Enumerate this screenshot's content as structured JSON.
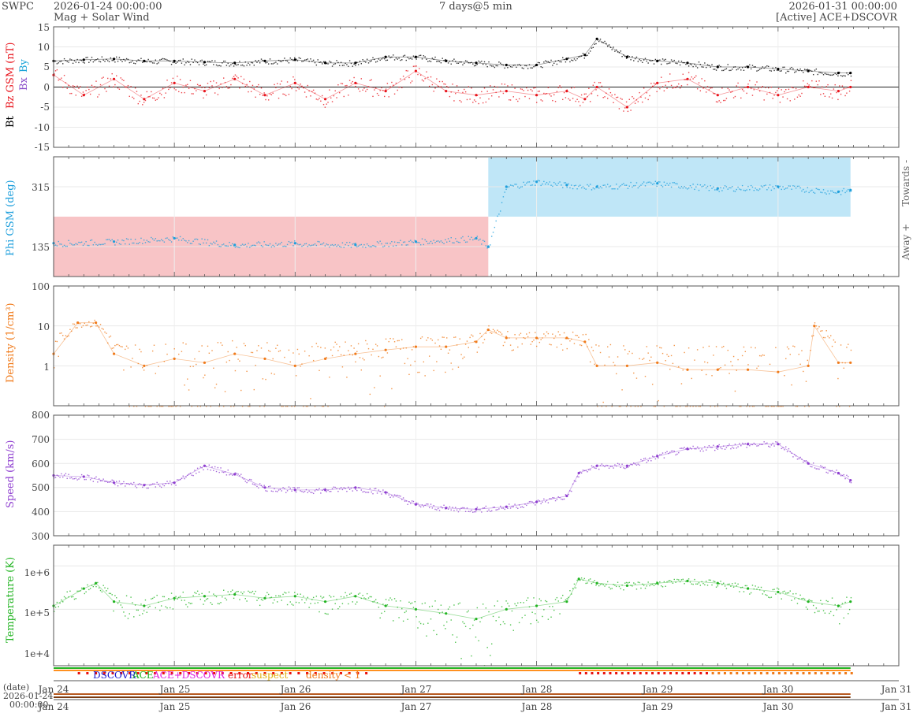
{
  "header": {
    "source": "SWPC",
    "start": "2026-01-24 00:00:00",
    "subtitle": "Mag + Solar Wind",
    "span": "7 days@5 min",
    "end": "2026-01-31 00:00:00",
    "status": "[Active] ACE+DSCOVR"
  },
  "panels": {
    "mag": {
      "ylabel_bt": "Bt",
      "ylabel_bz": "Bz GSM (nT)",
      "legend_bx": "Bx",
      "legend_by": "By",
      "ticks": [
        "15",
        "10",
        "5",
        "0",
        "-5",
        "-10",
        "-15"
      ]
    },
    "phi": {
      "ylabel": "Phi GSM (deg)",
      "ticks": [
        "315",
        "135"
      ],
      "right_top": "Towards -",
      "right_bottom": "Away +"
    },
    "density": {
      "ylabel": "Density (1/cm³)",
      "ticks": [
        "100",
        "10",
        "1"
      ]
    },
    "speed": {
      "ylabel": "Speed (km/s)",
      "ticks": [
        "800",
        "700",
        "600",
        "500",
        "400",
        "300"
      ]
    },
    "temp": {
      "ylabel": "Temperature (K)",
      "ticks": [
        "1e+6",
        "1e+5",
        "1e+4"
      ]
    }
  },
  "source_legend": {
    "dscovr": "DSCOVR",
    "ace": "ACE",
    "both": "ACE+DSCOVR",
    "error": "error",
    "suspect": "suspect",
    "density": "density < 1"
  },
  "xaxis": {
    "ticks": [
      "Jan 24",
      "Jan 25",
      "Jan 26",
      "Jan 27",
      "Jan 28",
      "Jan 29",
      "Jan 30",
      "Jan 31"
    ],
    "date_label": "(date)",
    "date_value": "2026-01-24",
    "time_value": "00:00:00"
  },
  "colors": {
    "bt": "#000000",
    "bz": "#e8141c",
    "bx": "#8a4dc9",
    "by": "#1aa4d8",
    "phi": "#1e9fdc",
    "toward_fill": "#bfe6f7",
    "away_fill": "#f8c4c6",
    "density": "#f07a1a",
    "speed": "#8f3fd0",
    "temp": "#22b422",
    "legend_dscovr": "#1a1ad0",
    "legend_ace": "#22b422",
    "legend_both": "#e020e0",
    "legend_error": "#e81010",
    "legend_suspect": "#e0b010",
    "legend_density": "#f07a1a"
  },
  "chart_data": [
    {
      "type": "line",
      "title": "Mag",
      "xlim": [
        0,
        7
      ],
      "ylim": [
        -15,
        15
      ],
      "series": [
        {
          "name": "Bt",
          "x": [
            0,
            0.25,
            0.5,
            0.75,
            1,
            1.25,
            1.5,
            1.75,
            2,
            2.25,
            2.5,
            2.75,
            3,
            3.25,
            3.5,
            3.75,
            4,
            4.25,
            4.4,
            4.5,
            4.75,
            5,
            5.25,
            5.5,
            5.75,
            6,
            6.25,
            6.5,
            6.6
          ],
          "values": [
            6.5,
            6.8,
            7,
            6.5,
            6.5,
            6.2,
            6,
            6.5,
            6.8,
            6,
            6,
            7.5,
            7.5,
            6.5,
            6,
            5.5,
            5.5,
            7,
            8,
            12,
            7.5,
            6.5,
            6,
            5,
            5,
            4.5,
            4,
            3.5,
            3.5
          ]
        },
        {
          "name": "Bz GSM",
          "x": [
            0,
            0.25,
            0.5,
            0.75,
            1,
            1.25,
            1.5,
            1.75,
            2,
            2.25,
            2.5,
            2.75,
            3,
            3.25,
            3.5,
            3.75,
            4,
            4.25,
            4.4,
            4.5,
            4.75,
            5,
            5.25,
            5.5,
            5.75,
            6,
            6.25,
            6.5,
            6.6
          ],
          "values": [
            3,
            -2,
            2,
            -3,
            1,
            -1,
            2,
            -2,
            1,
            -3,
            1,
            -1,
            4,
            -1,
            -2,
            -1,
            -2,
            -1,
            -3,
            0,
            -5,
            1,
            2,
            -2,
            0,
            -2,
            0,
            -1,
            0
          ]
        }
      ]
    },
    {
      "type": "scatter",
      "title": "Phi GSM",
      "xlim": [
        0,
        7
      ],
      "ylim": [
        45,
        405
      ],
      "series": [
        {
          "name": "Phi GSM",
          "x": [
            0,
            0.5,
            1,
            1.5,
            2,
            2.5,
            3,
            3.5,
            3.6,
            3.75,
            4,
            4.25,
            4.5,
            5,
            5.5,
            6,
            6.5,
            6.6
          ],
          "values": [
            145,
            150,
            160,
            140,
            145,
            140,
            150,
            160,
            135,
            315,
            330,
            320,
            315,
            325,
            310,
            315,
            300,
            305
          ]
        }
      ],
      "sectors": [
        {
          "label": "Away +",
          "from": 0,
          "to": 3.6
        },
        {
          "label": "Towards -",
          "from": 3.6,
          "to": 6.6
        }
      ]
    },
    {
      "type": "line",
      "title": "Density",
      "xlim": [
        0,
        7
      ],
      "ylim": [
        0.1,
        100
      ],
      "log_y": true,
      "series": [
        {
          "name": "Density",
          "x": [
            0,
            0.2,
            0.35,
            0.5,
            0.75,
            1,
            1.25,
            1.5,
            1.75,
            2,
            2.25,
            2.5,
            2.75,
            3,
            3.25,
            3.5,
            3.6,
            3.75,
            4,
            4.25,
            4.4,
            4.5,
            4.75,
            5,
            5.25,
            5.5,
            5.75,
            6,
            6.25,
            6.3,
            6.5,
            6.6
          ],
          "values": [
            2,
            12,
            12,
            2,
            1,
            1.5,
            1.2,
            2,
            1.5,
            1,
            1.5,
            2,
            2.5,
            3,
            3,
            4,
            8,
            5,
            5,
            5,
            4,
            1,
            1,
            1.2,
            0.8,
            0.8,
            0.8,
            0.7,
            1,
            10,
            1.2,
            1.2
          ]
        }
      ]
    },
    {
      "type": "line",
      "title": "Speed",
      "xlim": [
        0,
        7
      ],
      "ylim": [
        300,
        800
      ],
      "series": [
        {
          "name": "Speed",
          "x": [
            0,
            0.25,
            0.5,
            0.75,
            1,
            1.25,
            1.5,
            1.75,
            2,
            2.25,
            2.5,
            2.75,
            3,
            3.25,
            3.5,
            3.75,
            4,
            4.25,
            4.35,
            4.5,
            4.75,
            5,
            5.25,
            5.5,
            5.75,
            6,
            6.25,
            6.5,
            6.6
          ],
          "values": [
            550,
            545,
            520,
            510,
            520,
            590,
            555,
            500,
            490,
            490,
            500,
            480,
            430,
            415,
            410,
            420,
            440,
            465,
            560,
            590,
            590,
            630,
            660,
            670,
            680,
            680,
            600,
            560,
            530
          ]
        }
      ]
    },
    {
      "type": "line",
      "title": "Temperature",
      "xlim": [
        0,
        7
      ],
      "ylim": [
        5000,
        3000000
      ],
      "log_y": true,
      "series": [
        {
          "name": "Temperature",
          "x": [
            0,
            0.25,
            0.35,
            0.5,
            0.75,
            1,
            1.25,
            1.5,
            1.75,
            2,
            2.25,
            2.5,
            2.75,
            3,
            3.25,
            3.5,
            3.75,
            4,
            4.25,
            4.35,
            4.5,
            4.75,
            5,
            5.25,
            5.5,
            5.75,
            6,
            6.25,
            6.5,
            6.6
          ],
          "values": [
            120000,
            300000,
            400000,
            150000,
            120000,
            180000,
            200000,
            220000,
            180000,
            200000,
            150000,
            200000,
            120000,
            100000,
            80000,
            60000,
            100000,
            120000,
            150000,
            500000,
            400000,
            350000,
            400000,
            450000,
            400000,
            300000,
            250000,
            150000,
            120000,
            150000
          ]
        }
      ]
    }
  ]
}
